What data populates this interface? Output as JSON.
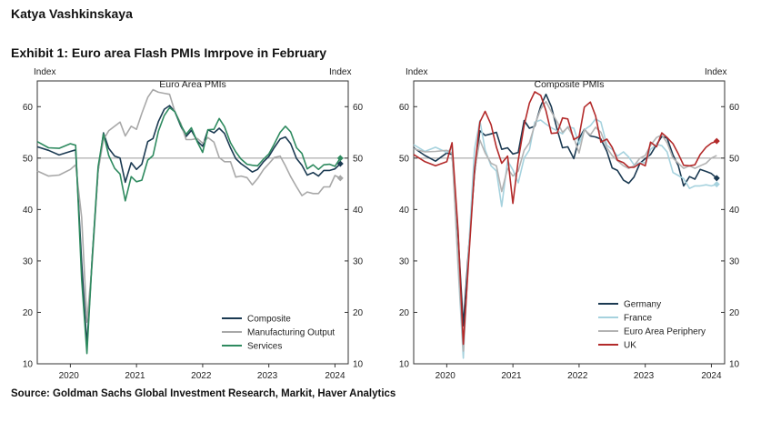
{
  "header": {
    "author": "Katya Vashkinskaya",
    "exhibit_title": "Exhibit 1: Euro area Flash PMIs Imrpove in February"
  },
  "footer": {
    "source": "Source: Goldman Sachs Global Investment Research, Markit, Haver Analytics"
  },
  "chart_data": [
    {
      "type": "line",
      "title": "Euro Area PMIs",
      "ylabel_left": "Index",
      "ylabel_right": "Index",
      "ylim": [
        10,
        65
      ],
      "xlim": [
        2019.5,
        2024.2
      ],
      "yticks": [
        10,
        20,
        30,
        40,
        50,
        60
      ],
      "xticks": [
        2020,
        2021,
        2022,
        2023,
        2024
      ],
      "reference_line": 50,
      "legend_position": "bottom-right",
      "series": [
        {
          "name": "Composite",
          "color": "#1b3a52",
          "end_marker": true,
          "x": [
            2019.5,
            2019.67,
            2019.83,
            2020.0,
            2020.08,
            2020.17,
            2020.25,
            2020.33,
            2020.42,
            2020.5,
            2020.58,
            2020.67,
            2020.75,
            2020.83,
            2020.92,
            2021.0,
            2021.08,
            2021.17,
            2021.25,
            2021.33,
            2021.42,
            2021.5,
            2021.58,
            2021.67,
            2021.75,
            2021.83,
            2021.92,
            2022.0,
            2022.08,
            2022.17,
            2022.25,
            2022.33,
            2022.42,
            2022.5,
            2022.58,
            2022.67,
            2022.75,
            2022.83,
            2022.92,
            2023.0,
            2023.08,
            2023.17,
            2023.25,
            2023.33,
            2023.42,
            2023.5,
            2023.58,
            2023.67,
            2023.75,
            2023.83,
            2023.92,
            2024.0,
            2024.08
          ],
          "values": [
            52.2,
            51.5,
            50.6,
            51.3,
            51.6,
            29.7,
            13.6,
            30.5,
            47.5,
            54.9,
            51.9,
            50.4,
            50.0,
            45.3,
            49.1,
            47.8,
            48.8,
            53.2,
            53.8,
            57.1,
            59.5,
            60.2,
            59.0,
            56.2,
            54.2,
            55.4,
            53.3,
            52.3,
            55.5,
            54.9,
            55.8,
            54.8,
            52.0,
            49.9,
            48.9,
            48.1,
            47.3,
            47.8,
            49.3,
            50.3,
            52.0,
            53.7,
            54.1,
            52.8,
            49.9,
            48.6,
            46.7,
            47.2,
            46.5,
            47.6,
            47.6,
            47.9,
            48.9
          ]
        },
        {
          "name": "Manufacturing Output",
          "color": "#a8a8a8",
          "end_marker": true,
          "x": [
            2019.5,
            2019.67,
            2019.83,
            2020.0,
            2020.08,
            2020.17,
            2020.25,
            2020.33,
            2020.42,
            2020.5,
            2020.58,
            2020.67,
            2020.75,
            2020.83,
            2020.92,
            2021.0,
            2021.08,
            2021.17,
            2021.25,
            2021.33,
            2021.42,
            2021.5,
            2021.58,
            2021.67,
            2021.75,
            2021.83,
            2021.92,
            2022.0,
            2022.08,
            2022.17,
            2022.25,
            2022.33,
            2022.42,
            2022.5,
            2022.58,
            2022.67,
            2022.75,
            2022.83,
            2022.92,
            2023.0,
            2023.08,
            2023.17,
            2023.25,
            2023.33,
            2023.42,
            2023.5,
            2023.58,
            2023.67,
            2023.75,
            2023.83,
            2023.92,
            2024.0,
            2024.08
          ],
          "values": [
            47.5,
            46.5,
            46.7,
            47.8,
            48.7,
            38.5,
            18.1,
            29.5,
            47.5,
            53.6,
            55.3,
            56.2,
            57.0,
            54.3,
            56.2,
            55.6,
            58.7,
            61.8,
            63.3,
            62.8,
            62.6,
            62.4,
            59.0,
            56.7,
            53.6,
            53.6,
            53.8,
            52.9,
            54.0,
            53.1,
            50.1,
            49.3,
            49.3,
            46.3,
            46.5,
            46.2,
            44.8,
            46.0,
            47.8,
            48.9,
            50.1,
            50.4,
            48.5,
            46.4,
            44.4,
            42.7,
            43.4,
            43.1,
            43.1,
            44.4,
            44.4,
            46.6,
            46.1
          ]
        },
        {
          "name": "Services",
          "color": "#2e8a5f",
          "end_marker": true,
          "x": [
            2019.5,
            2019.67,
            2019.83,
            2020.0,
            2020.08,
            2020.17,
            2020.25,
            2020.33,
            2020.42,
            2020.5,
            2020.58,
            2020.67,
            2020.75,
            2020.83,
            2020.92,
            2021.0,
            2021.08,
            2021.17,
            2021.25,
            2021.33,
            2021.42,
            2021.5,
            2021.58,
            2021.67,
            2021.75,
            2021.83,
            2021.92,
            2022.0,
            2022.08,
            2022.17,
            2022.25,
            2022.33,
            2022.42,
            2022.5,
            2022.58,
            2022.67,
            2022.75,
            2022.83,
            2022.92,
            2023.0,
            2023.08,
            2023.17,
            2023.25,
            2023.33,
            2023.42,
            2023.5,
            2023.58,
            2023.67,
            2023.75,
            2023.83,
            2023.92,
            2024.0,
            2024.08
          ],
          "values": [
            53.2,
            52.0,
            51.9,
            52.8,
            52.5,
            26.4,
            12.0,
            30.5,
            48.3,
            54.7,
            50.5,
            48.0,
            46.9,
            41.7,
            46.4,
            45.4,
            45.7,
            49.6,
            50.5,
            55.2,
            58.3,
            59.8,
            59.0,
            56.4,
            54.6,
            55.9,
            53.1,
            51.1,
            55.5,
            55.6,
            57.7,
            56.1,
            53.0,
            51.2,
            49.8,
            48.8,
            48.6,
            48.5,
            49.8,
            50.8,
            52.7,
            55.0,
            56.2,
            55.1,
            52.0,
            50.9,
            47.9,
            48.7,
            47.8,
            48.7,
            48.8,
            48.4,
            50.0
          ]
        }
      ]
    },
    {
      "type": "line",
      "title": "Composite PMIs",
      "ylabel_left": "Index",
      "ylabel_right": "Index",
      "ylim": [
        10,
        65
      ],
      "xlim": [
        2019.5,
        2024.2
      ],
      "yticks": [
        10,
        20,
        30,
        40,
        50,
        60
      ],
      "xticks": [
        2020,
        2021,
        2022,
        2023,
        2024
      ],
      "reference_line": 50,
      "legend_position": "bottom-right",
      "series": [
        {
          "name": "Germany",
          "color": "#1b3a52",
          "end_marker": true,
          "x": [
            2019.5,
            2019.67,
            2019.83,
            2020.0,
            2020.08,
            2020.17,
            2020.25,
            2020.33,
            2020.42,
            2020.5,
            2020.58,
            2020.67,
            2020.75,
            2020.83,
            2020.92,
            2021.0,
            2021.08,
            2021.17,
            2021.25,
            2021.33,
            2021.42,
            2021.5,
            2021.58,
            2021.67,
            2021.75,
            2021.83,
            2021.92,
            2022.0,
            2022.08,
            2022.17,
            2022.25,
            2022.33,
            2022.42,
            2022.5,
            2022.58,
            2022.67,
            2022.75,
            2022.83,
            2022.92,
            2023.0,
            2023.08,
            2023.17,
            2023.25,
            2023.33,
            2023.42,
            2023.5,
            2023.58,
            2023.67,
            2023.75,
            2023.83,
            2023.92,
            2024.0,
            2024.08
          ],
          "values": [
            52.0,
            50.5,
            49.4,
            51.0,
            50.7,
            35.0,
            17.4,
            32.3,
            47.0,
            55.3,
            54.4,
            54.7,
            55.0,
            51.7,
            52.0,
            50.8,
            51.1,
            57.3,
            55.8,
            56.2,
            60.1,
            62.4,
            60.0,
            55.5,
            52.0,
            52.2,
            49.9,
            53.8,
            55.6,
            54.3,
            54.1,
            53.7,
            51.3,
            48.1,
            47.6,
            45.7,
            45.1,
            46.3,
            49.0,
            49.9,
            50.7,
            52.6,
            54.2,
            53.9,
            50.6,
            48.5,
            44.6,
            46.4,
            45.9,
            47.8,
            47.4,
            47.0,
            46.1
          ]
        },
        {
          "name": "France",
          "color": "#a6d2de",
          "end_marker": true,
          "x": [
            2019.5,
            2019.67,
            2019.83,
            2020.0,
            2020.08,
            2020.17,
            2020.25,
            2020.33,
            2020.42,
            2020.5,
            2020.58,
            2020.67,
            2020.75,
            2020.83,
            2020.92,
            2021.0,
            2021.08,
            2021.17,
            2021.25,
            2021.33,
            2021.42,
            2021.5,
            2021.58,
            2021.67,
            2021.75,
            2021.83,
            2021.92,
            2022.0,
            2022.08,
            2022.17,
            2022.25,
            2022.33,
            2022.42,
            2022.5,
            2022.58,
            2022.67,
            2022.75,
            2022.83,
            2022.92,
            2023.0,
            2023.08,
            2023.17,
            2023.25,
            2023.33,
            2023.42,
            2023.5,
            2023.58,
            2023.67,
            2023.75,
            2023.83,
            2023.92,
            2024.0,
            2024.08
          ],
          "values": [
            52.6,
            51.3,
            52.1,
            51.1,
            52.0,
            28.9,
            11.1,
            32.1,
            51.7,
            57.3,
            51.6,
            48.5,
            47.5,
            40.6,
            49.5,
            47.7,
            45.2,
            50.0,
            51.6,
            57.0,
            57.4,
            56.6,
            55.9,
            55.3,
            54.7,
            56.1,
            55.8,
            52.7,
            55.5,
            56.3,
            57.6,
            57.0,
            52.5,
            51.7,
            50.4,
            51.2,
            50.2,
            48.7,
            49.1,
            49.1,
            51.7,
            52.7,
            52.4,
            51.2,
            47.2,
            46.6,
            46.0,
            44.1,
            44.6,
            44.6,
            44.8,
            44.6,
            44.9
          ]
        },
        {
          "name": "Euro Area Periphery",
          "color": "#b3b3b3",
          "end_marker": false,
          "x": [
            2019.5,
            2019.67,
            2019.83,
            2020.0,
            2020.08,
            2020.17,
            2020.25,
            2020.33,
            2020.42,
            2020.5,
            2020.58,
            2020.67,
            2020.75,
            2020.83,
            2020.92,
            2021.0,
            2021.08,
            2021.17,
            2021.25,
            2021.33,
            2021.42,
            2021.5,
            2021.58,
            2021.67,
            2021.75,
            2021.83,
            2021.92,
            2022.0,
            2022.08,
            2022.17,
            2022.25,
            2022.33,
            2022.42,
            2022.5,
            2022.58,
            2022.67,
            2022.75,
            2022.83,
            2022.92,
            2023.0,
            2023.08,
            2023.17,
            2023.25,
            2023.33,
            2023.42,
            2023.5,
            2023.58,
            2023.67,
            2023.75,
            2023.83,
            2023.92,
            2024.0,
            2024.08
          ],
          "values": [
            51.8,
            51.2,
            51.3,
            51.5,
            51.0,
            30.0,
            12.5,
            31.0,
            47.5,
            53.5,
            51.0,
            49.0,
            48.5,
            43.5,
            48.0,
            46.5,
            47.5,
            51.5,
            53.0,
            56.5,
            59.5,
            61.0,
            59.0,
            57.0,
            55.0,
            56.0,
            54.0,
            51.0,
            55.5,
            54.5,
            56.0,
            55.0,
            52.0,
            50.5,
            49.5,
            48.5,
            48.0,
            48.5,
            50.0,
            50.5,
            52.5,
            54.0,
            54.5,
            53.0,
            50.0,
            49.0,
            48.0,
            48.5,
            48.0,
            48.5,
            49.0,
            50.0,
            50.5
          ]
        },
        {
          "name": "UK",
          "color": "#b32a2a",
          "end_marker": true,
          "x": [
            2019.5,
            2019.67,
            2019.83,
            2020.0,
            2020.08,
            2020.17,
            2020.25,
            2020.33,
            2020.42,
            2020.5,
            2020.58,
            2020.67,
            2020.75,
            2020.83,
            2020.92,
            2021.0,
            2021.08,
            2021.17,
            2021.25,
            2021.33,
            2021.42,
            2021.5,
            2021.58,
            2021.67,
            2021.75,
            2021.83,
            2021.92,
            2022.0,
            2022.08,
            2022.17,
            2022.25,
            2022.33,
            2022.42,
            2022.5,
            2022.58,
            2022.67,
            2022.75,
            2022.83,
            2022.92,
            2023.0,
            2023.08,
            2023.17,
            2023.25,
            2023.33,
            2023.42,
            2023.5,
            2023.58,
            2023.67,
            2023.75,
            2023.83,
            2023.92,
            2024.0,
            2024.08
          ],
          "values": [
            50.7,
            49.3,
            48.5,
            49.3,
            53.0,
            36.0,
            13.8,
            30.0,
            47.7,
            57.0,
            59.1,
            56.5,
            52.1,
            49.0,
            50.4,
            41.2,
            49.6,
            56.4,
            60.7,
            62.9,
            62.2,
            59.2,
            54.8,
            54.9,
            57.8,
            57.6,
            53.6,
            54.2,
            59.9,
            60.9,
            58.2,
            53.1,
            53.7,
            52.1,
            49.6,
            49.1,
            48.2,
            48.2,
            49.0,
            48.5,
            53.1,
            52.2,
            54.9,
            54.0,
            52.8,
            50.8,
            48.6,
            48.5,
            48.7,
            50.7,
            52.1,
            52.9,
            53.3
          ]
        }
      ]
    }
  ]
}
